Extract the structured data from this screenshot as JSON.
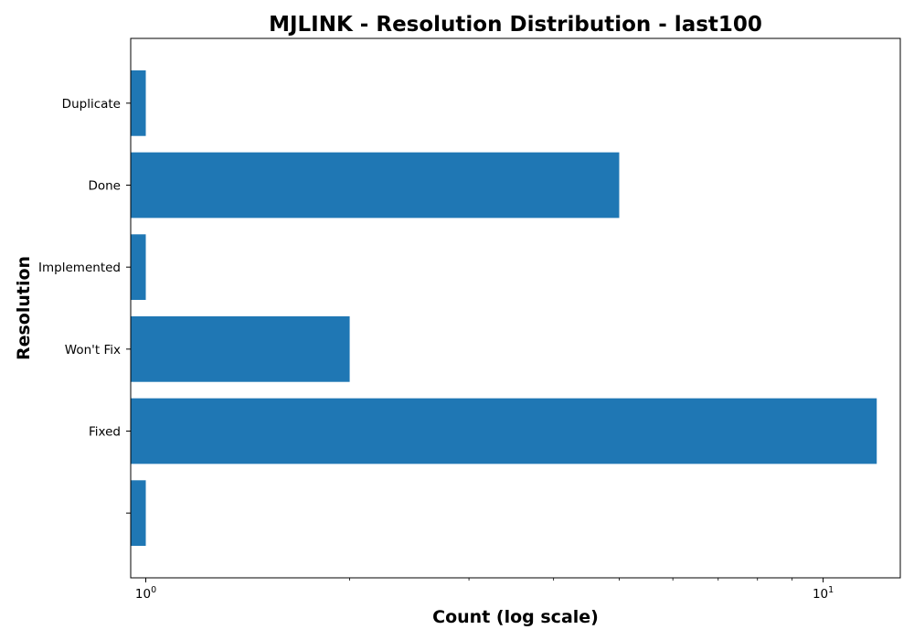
{
  "chart_data": {
    "type": "bar",
    "orientation": "horizontal",
    "title": "MJLINK - Resolution Distribution - last100",
    "xlabel": "Count (log scale)",
    "ylabel": "Resolution",
    "x_scale": "log",
    "xlim": [
      0.95,
      13
    ],
    "x_ticks": [
      {
        "value": 1,
        "base": "10",
        "exponent": "0"
      },
      {
        "value": 10,
        "base": "10",
        "exponent": "1"
      }
    ],
    "categories": [
      "",
      "Fixed",
      "Won't Fix",
      "Implemented",
      "Done",
      "Duplicate"
    ],
    "values": [
      1,
      12,
      2,
      1,
      5,
      1
    ],
    "bar_color": "#1f77b4",
    "grid": false,
    "legend": "none"
  }
}
